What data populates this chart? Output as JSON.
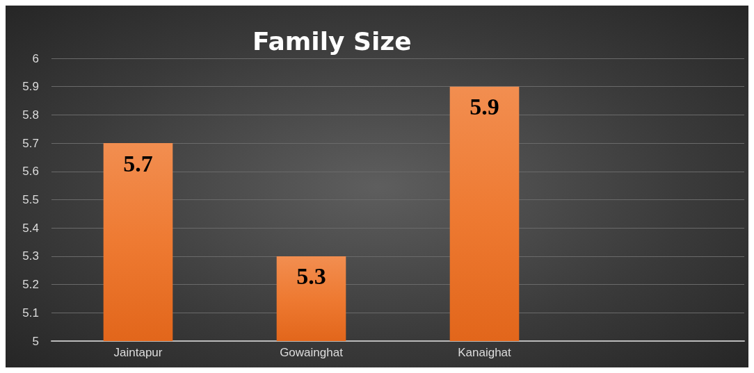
{
  "chart_data": {
    "type": "bar",
    "title": "Family Size",
    "categories": [
      "Jaintapur",
      "Gowainghat",
      "Kanaighat",
      null
    ],
    "values": [
      5.7,
      5.3,
      5.9,
      null
    ],
    "color": "#ee7a32",
    "ylim": [
      5,
      6
    ],
    "yticks": [
      5,
      5.1,
      5.2,
      5.3,
      5.4,
      5.5,
      5.6,
      5.7,
      5.8,
      5.9,
      6
    ],
    "grid": "y",
    "data_labels": true
  }
}
